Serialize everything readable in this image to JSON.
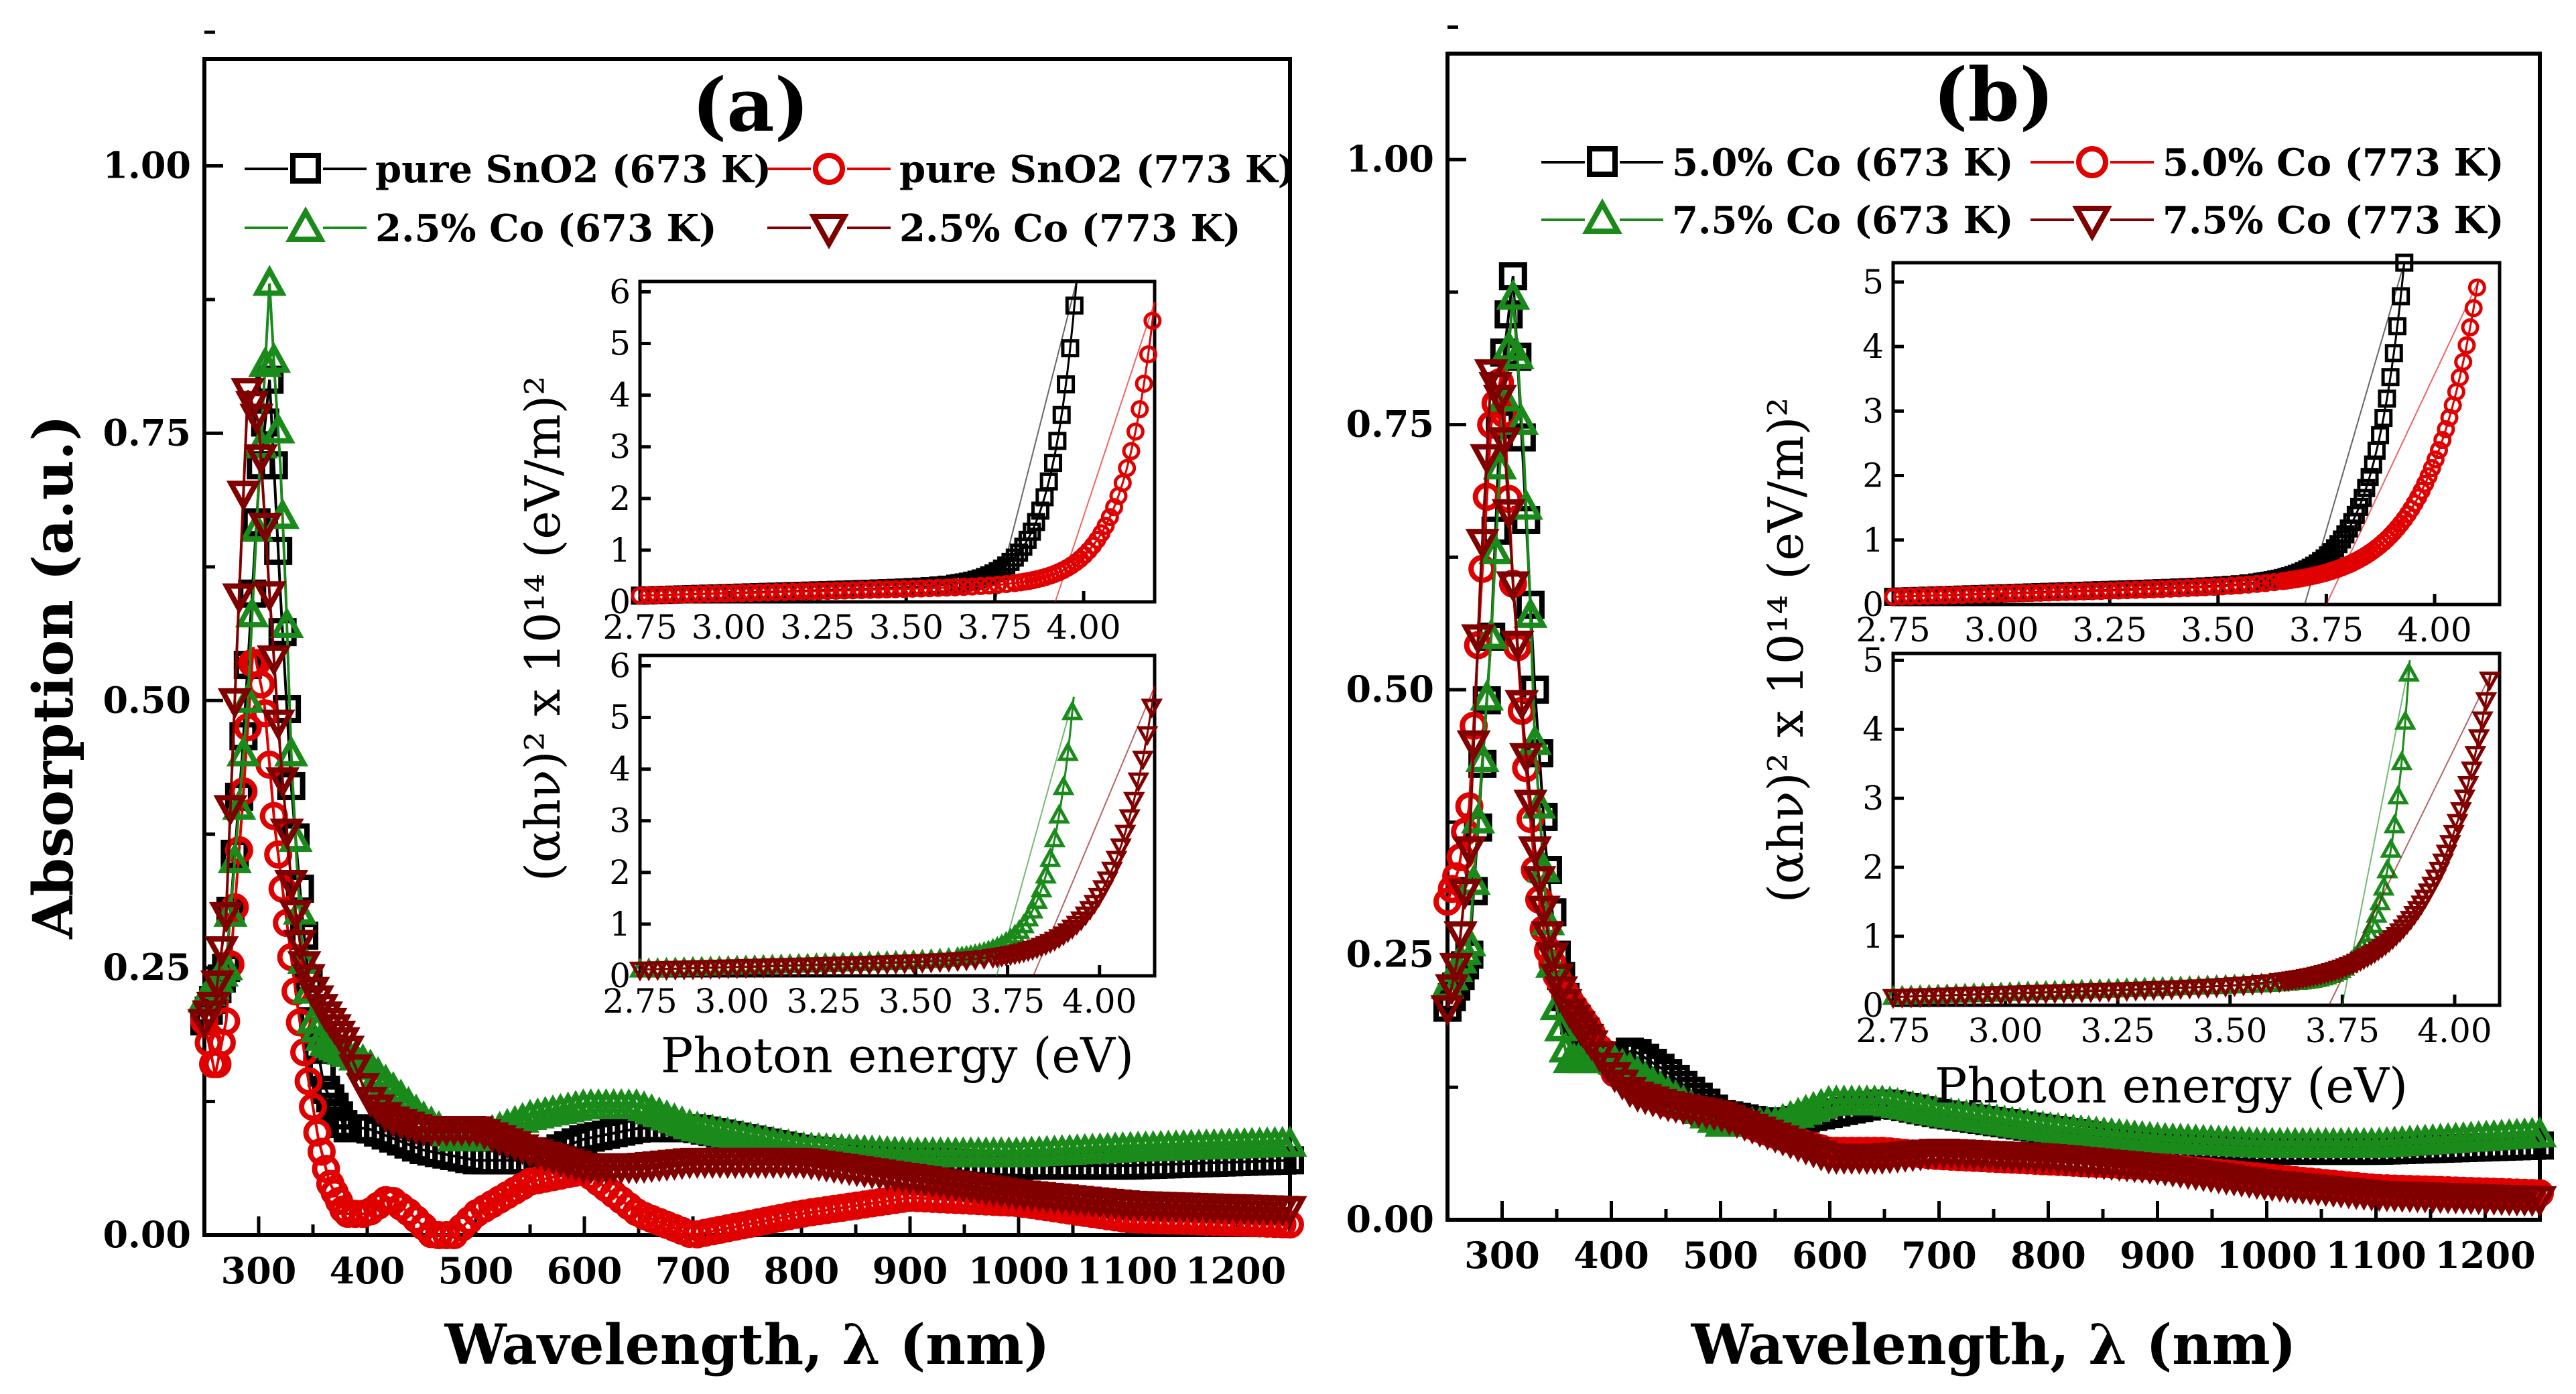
{
  "chart_data": [
    {
      "panel": "(a)",
      "type": "scatter",
      "xlabel": "Wavelength, λ (nm)",
      "ylabel": "Absorption (a.u.)",
      "xlim": [
        250,
        1250
      ],
      "ylim": [
        0,
        1.1
      ],
      "xticks": [
        "300",
        "400",
        "500",
        "600",
        "700",
        "800",
        "900",
        "1000",
        "1100",
        "1200"
      ],
      "yticks": [
        "0.00",
        "0.25",
        "0.50",
        "0.75",
        "1.00"
      ],
      "series": [
        {
          "name": "pure SnO2 (673 K)",
          "marker": "square",
          "color": "#000000",
          "x": [
            250,
            270,
            285,
            300,
            310,
            320,
            330,
            340,
            350,
            360,
            380,
            400,
            450,
            500,
            550,
            600,
            650,
            700,
            800,
            900,
            1000,
            1100,
            1250
          ],
          "y": [
            0.2,
            0.25,
            0.45,
            0.7,
            0.8,
            0.6,
            0.42,
            0.3,
            0.2,
            0.14,
            0.1,
            0.1,
            0.08,
            0.07,
            0.07,
            0.09,
            0.1,
            0.1,
            0.08,
            0.07,
            0.065,
            0.065,
            0.07
          ]
        },
        {
          "name": "pure SnO2 (773 K)",
          "marker": "circle",
          "color": "#e00000",
          "x": [
            250,
            260,
            270,
            285,
            295,
            305,
            315,
            325,
            335,
            345,
            355,
            365,
            380,
            400,
            420,
            440,
            460,
            480,
            500,
            550,
            600,
            650,
            700,
            750,
            800,
            900,
            1000,
            1100,
            1250
          ],
          "y": [
            0.2,
            0.15,
            0.2,
            0.4,
            0.55,
            0.5,
            0.38,
            0.3,
            0.22,
            0.15,
            0.09,
            0.05,
            0.02,
            0.02,
            0.035,
            0.02,
            0.0,
            0.0,
            0.02,
            0.05,
            0.06,
            0.02,
            0.0,
            0.01,
            0.02,
            0.035,
            0.03,
            0.015,
            0.01
          ]
        },
        {
          "name": "2.5% Co (673 K)",
          "marker": "triangle-up",
          "color": "#1a8a1a",
          "x": [
            250,
            270,
            290,
            300,
            310,
            315,
            320,
            325,
            330,
            335,
            340,
            350,
            360,
            380,
            400,
            420,
            450,
            480,
            500,
            550,
            600,
            650,
            700,
            800,
            900,
            1000,
            1100,
            1250
          ],
          "y": [
            0.22,
            0.25,
            0.5,
            0.7,
            0.89,
            0.8,
            0.72,
            0.6,
            0.45,
            0.35,
            0.27,
            0.2,
            0.18,
            0.17,
            0.16,
            0.14,
            0.11,
            0.09,
            0.09,
            0.11,
            0.12,
            0.12,
            0.1,
            0.08,
            0.075,
            0.075,
            0.08,
            0.085
          ]
        },
        {
          "name": "2.5% Co (773 K)",
          "marker": "triangle-down",
          "color": "#800000",
          "x": [
            250,
            260,
            270,
            280,
            290,
            300,
            310,
            320,
            330,
            340,
            350,
            360,
            380,
            400,
            420,
            450,
            500,
            550,
            600,
            650,
            700,
            800,
            900,
            1000,
            1100,
            1250
          ],
          "y": [
            0.2,
            0.22,
            0.3,
            0.55,
            0.79,
            0.76,
            0.6,
            0.45,
            0.33,
            0.26,
            0.23,
            0.21,
            0.18,
            0.13,
            0.11,
            0.1,
            0.1,
            0.08,
            0.065,
            0.065,
            0.07,
            0.07,
            0.055,
            0.04,
            0.03,
            0.025
          ]
        }
      ],
      "insets": [
        {
          "xlabel": "Photon energy (eV)",
          "ylabel": "(αhν)² x 10¹⁴ (eV/m)²",
          "xlim": [
            2.75,
            4.2
          ],
          "ylim": [
            0,
            6.2
          ],
          "xticks": [
            "2.75",
            "3.00",
            "3.25",
            "3.50",
            "3.75",
            "4.00"
          ],
          "yticks": [
            "0",
            "1",
            "2",
            "3",
            "4",
            "5",
            "6"
          ],
          "series": [
            {
              "name": "pure SnO2 (673 K)",
              "marker": "square",
              "color": "#000000",
              "e0": 3.75,
              "emax": 3.98,
              "ymax": 6.2
            },
            {
              "name": "pure SnO2 (773 K)",
              "marker": "circle",
              "color": "#e00000",
              "e0": 3.92,
              "emax": 4.2,
              "ymax": 5.8
            }
          ]
        },
        {
          "xlabel": "Photon energy (eV)",
          "ylabel": "",
          "xlim": [
            2.75,
            4.15
          ],
          "ylim": [
            0,
            6.2
          ],
          "xticks": [
            "2.75",
            "3.00",
            "3.25",
            "3.50",
            "3.75",
            "4.00"
          ],
          "yticks": [
            "0",
            "1",
            "2",
            "3",
            "4",
            "5",
            "6"
          ],
          "series": [
            {
              "name": "2.5% Co (673 K)",
              "marker": "triangle-up",
              "color": "#1a8a1a",
              "e0": 3.72,
              "emax": 3.93,
              "ymax": 5.4
            },
            {
              "name": "2.5% Co (773 K)",
              "marker": "triangle-down",
              "color": "#800000",
              "e0": 3.82,
              "emax": 4.15,
              "ymax": 5.6
            }
          ]
        }
      ]
    },
    {
      "panel": "(b)",
      "type": "scatter",
      "xlabel": "Wavelength, λ (nm)",
      "ylabel": "",
      "xlim": [
        250,
        1250
      ],
      "ylim": [
        0,
        1.1
      ],
      "xticks": [
        "300",
        "400",
        "500",
        "600",
        "700",
        "800",
        "900",
        "1000",
        "1100",
        "1200"
      ],
      "yticks": [
        "0.00",
        "0.25",
        "0.50",
        "0.75",
        "1.00"
      ],
      "series": [
        {
          "name": "5.0% Co (673 K)",
          "marker": "square",
          "color": "#000000",
          "x": [
            250,
            270,
            290,
            300,
            310,
            320,
            330,
            340,
            350,
            360,
            380,
            400,
            420,
            450,
            500,
            550,
            600,
            650,
            700,
            800,
            900,
            1000,
            1100,
            1250
          ],
          "y": [
            0.2,
            0.25,
            0.55,
            0.8,
            0.89,
            0.7,
            0.5,
            0.35,
            0.25,
            0.2,
            0.16,
            0.15,
            0.16,
            0.14,
            0.1,
            0.09,
            0.1,
            0.11,
            0.1,
            0.085,
            0.07,
            0.065,
            0.065,
            0.07
          ]
        },
        {
          "name": "5.0% Co (773 K)",
          "marker": "circle",
          "color": "#e00000",
          "x": [
            250,
            260,
            270,
            280,
            290,
            300,
            310,
            320,
            330,
            340,
            350,
            360,
            380,
            400,
            450,
            500,
            550,
            600,
            650,
            700,
            800,
            900,
            1000,
            1100,
            1250
          ],
          "y": [
            0.3,
            0.33,
            0.39,
            0.58,
            0.75,
            0.8,
            0.6,
            0.45,
            0.33,
            0.26,
            0.23,
            0.21,
            0.18,
            0.14,
            0.11,
            0.1,
            0.08,
            0.065,
            0.065,
            0.06,
            0.055,
            0.05,
            0.04,
            0.03,
            0.025
          ]
        },
        {
          "name": "7.5% Co (673 K)",
          "marker": "triangle-up",
          "color": "#1a8a1a",
          "x": [
            250,
            270,
            290,
            300,
            310,
            315,
            320,
            325,
            330,
            340,
            350,
            360,
            380,
            400,
            420,
            450,
            500,
            550,
            600,
            650,
            700,
            800,
            900,
            1000,
            1100,
            1250
          ],
          "y": [
            0.22,
            0.26,
            0.55,
            0.75,
            0.87,
            0.8,
            0.72,
            0.6,
            0.45,
            0.3,
            0.2,
            0.15,
            0.15,
            0.15,
            0.14,
            0.12,
            0.09,
            0.09,
            0.11,
            0.11,
            0.1,
            0.085,
            0.075,
            0.07,
            0.07,
            0.08
          ]
        },
        {
          "name": "7.5% Co (773 K)",
          "marker": "triangle-down",
          "color": "#800000",
          "x": [
            250,
            260,
            270,
            280,
            290,
            300,
            310,
            320,
            330,
            340,
            350,
            360,
            380,
            400,
            420,
            450,
            500,
            550,
            600,
            650,
            700,
            800,
            900,
            1000,
            1100,
            1250
          ],
          "y": [
            0.2,
            0.25,
            0.35,
            0.6,
            0.8,
            0.77,
            0.6,
            0.46,
            0.35,
            0.28,
            0.23,
            0.2,
            0.17,
            0.14,
            0.12,
            0.11,
            0.1,
            0.08,
            0.06,
            0.06,
            0.065,
            0.06,
            0.05,
            0.035,
            0.025,
            0.02
          ]
        }
      ],
      "insets": [
        {
          "xlabel": "",
          "ylabel": "(αhν)² x 10¹⁴ (eV/m)²",
          "xlim": [
            2.75,
            4.15
          ],
          "ylim": [
            0,
            5.3
          ],
          "xticks": [
            "2.75",
            "3.00",
            "3.25",
            "3.50",
            "3.75",
            "4.00"
          ],
          "yticks": [
            "0",
            "1",
            "2",
            "3",
            "4",
            "5"
          ],
          "series": [
            {
              "name": "5.0% Co (673 K)",
              "marker": "square",
              "color": "#000000",
              "e0": 3.7,
              "emax": 3.93,
              "ymax": 5.3
            },
            {
              "name": "5.0% Co (773 K)",
              "marker": "circle",
              "color": "#e00000",
              "e0": 3.75,
              "emax": 4.1,
              "ymax": 5.0
            }
          ]
        },
        {
          "xlabel": "Photon energy (eV)",
          "ylabel": "",
          "xlim": [
            2.75,
            4.1
          ],
          "ylim": [
            0,
            5.1
          ],
          "xticks": [
            "2.75",
            "3.00",
            "3.25",
            "3.50",
            "3.75",
            "4.00"
          ],
          "yticks": [
            "0",
            "1",
            "2",
            "3",
            "4",
            "5"
          ],
          "series": [
            {
              "name": "7.5% Co (673 K)",
              "marker": "triangle-up",
              "color": "#1a8a1a",
              "e0": 3.75,
              "emax": 3.9,
              "ymax": 5.0
            },
            {
              "name": "7.5% Co (773 K)",
              "marker": "triangle-down",
              "color": "#800000",
              "e0": 3.72,
              "emax": 4.08,
              "ymax": 4.8
            }
          ]
        }
      ]
    }
  ]
}
